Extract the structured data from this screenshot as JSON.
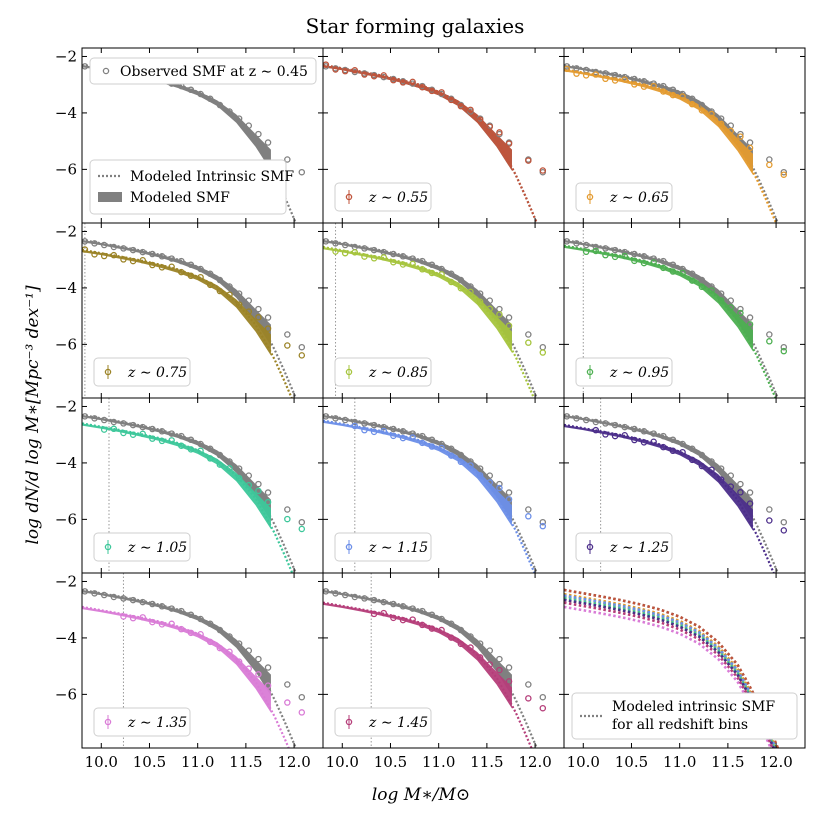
{
  "figure": {
    "title": "Star forming galaxies",
    "xlabel": "log M∗/M⊙",
    "ylabel": "log dN/d log M∗[Mpc⁻³ dex⁻¹]"
  },
  "axes": {
    "xlim": [
      9.8,
      12.3
    ],
    "ylim": [
      -7.9,
      -1.7
    ],
    "xticks": [
      "10.0",
      "10.5",
      "11.0",
      "11.5",
      "12.0"
    ],
    "yticks": [
      "−2",
      "−4",
      "−6"
    ],
    "xtick_values": [
      10.0,
      10.5,
      11.0,
      11.5,
      12.0
    ],
    "ytick_values": [
      -2,
      -4,
      -6
    ]
  },
  "legend_first_panel": {
    "observed": "Observed SMF at z ∼ 0.45",
    "intrinsic": "Modeled Intrinsic SMF",
    "modeled": "Modeled SMF"
  },
  "legend_last_panel": {
    "line1": "Modeled intrinsic SMF",
    "line2": "for all redshift bins"
  },
  "reference": {
    "name": "z ~ 0.45 (grey)",
    "color": "#808080",
    "observed_x": [
      9.83,
      9.93,
      10.03,
      10.13,
      10.23,
      10.33,
      10.43,
      10.53,
      10.63,
      10.73,
      10.83,
      10.93,
      11.03,
      11.13,
      11.23,
      11.33,
      11.43,
      11.53,
      11.63,
      11.73,
      11.93,
      12.08
    ],
    "observed_y": [
      -2.35,
      -2.42,
      -2.48,
      -2.55,
      -2.6,
      -2.66,
      -2.73,
      -2.8,
      -2.88,
      -2.96,
      -3.05,
      -3.18,
      -3.33,
      -3.5,
      -3.72,
      -3.95,
      -4.2,
      -4.45,
      -4.75,
      -5.05,
      -5.65,
      -6.1
    ],
    "intrinsic_x": [
      9.8,
      10.0,
      10.2,
      10.4,
      10.6,
      10.8,
      11.0,
      11.2,
      11.4,
      11.6,
      11.7,
      11.8,
      11.9,
      12.0,
      12.1
    ],
    "intrinsic_y": [
      -2.3,
      -2.42,
      -2.54,
      -2.67,
      -2.82,
      -3.0,
      -3.25,
      -3.6,
      -4.15,
      -4.95,
      -5.55,
      -6.2,
      -6.95,
      -7.75,
      -8.6
    ],
    "band_x": [
      9.8,
      10.0,
      10.2,
      10.4,
      10.6,
      10.8,
      11.0,
      11.2,
      11.4,
      11.6,
      11.76
    ],
    "band_upper": [
      -2.3,
      -2.41,
      -2.53,
      -2.66,
      -2.81,
      -2.99,
      -3.22,
      -3.55,
      -4.05,
      -4.75,
      -5.3
    ],
    "band_lower": [
      -2.38,
      -2.49,
      -2.62,
      -2.76,
      -2.92,
      -3.12,
      -3.38,
      -3.75,
      -4.35,
      -5.2,
      -6.05
    ]
  },
  "chart_data": {
    "type": "scatter",
    "title": "Star forming galaxies",
    "xlabel": "log M∗/M⊙",
    "ylabel": "log dN/d log M∗[Mpc⁻³ dex⁻¹]",
    "xlim": [
      9.8,
      12.3
    ],
    "ylim": [
      -7.9,
      -1.7
    ],
    "panels": [
      {
        "label": "z ∼ 0.45",
        "color": "#808080",
        "offset": 0.0,
        "cutoff": 9.8,
        "is_reference": true
      },
      {
        "label": "z ∼ 0.55",
        "color": "#c0533a",
        "offset": 0.0,
        "cutoff": 9.8
      },
      {
        "label": "z ∼ 0.65",
        "color": "#e39a2e",
        "offset": -0.15,
        "cutoff": 9.8
      },
      {
        "label": "z ∼ 0.75",
        "color": "#9b8326",
        "offset": -0.35,
        "cutoff": 9.83
      },
      {
        "label": "z ∼ 0.85",
        "color": "#a5c43c",
        "offset": -0.25,
        "cutoff": 9.93
      },
      {
        "label": "z ∼ 0.95",
        "color": "#4caf50",
        "offset": -0.2,
        "cutoff": 10.0
      },
      {
        "label": "z ∼ 1.05",
        "color": "#3cc79a",
        "offset": -0.3,
        "cutoff": 10.08
      },
      {
        "label": "z ∼ 1.15",
        "color": "#6b8ee8",
        "offset": -0.2,
        "cutoff": 10.13
      },
      {
        "label": "z ∼ 1.25",
        "color": "#4b2d8a",
        "offset": -0.35,
        "cutoff": 10.18
      },
      {
        "label": "z ∼ 1.35",
        "color": "#d97bd6",
        "offset": -0.6,
        "cutoff": 10.23
      },
      {
        "label": "z ∼ 1.45",
        "color": "#b53d79",
        "offset": -0.45,
        "cutoff": 10.3
      },
      {
        "label": "all",
        "color": "#808080",
        "is_summary": true
      }
    ]
  }
}
